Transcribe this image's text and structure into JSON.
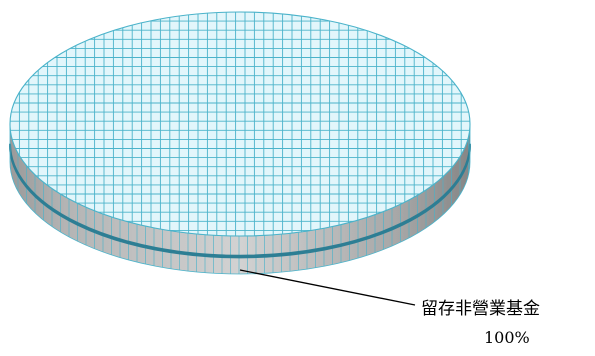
{
  "chart_data": {
    "type": "pie",
    "style": "3d-pie",
    "title": "",
    "slices": [
      {
        "label": "留存非營業基金",
        "value": 100,
        "value_label": "100%"
      }
    ],
    "colors": {
      "top_fill": "#e2f6fb",
      "grid_line": "#4bb3ca",
      "side_fill": "#c7c7c7",
      "side_dark": "#8e8e8e",
      "band": "#2d7e94",
      "leader_line": "#000000"
    }
  }
}
